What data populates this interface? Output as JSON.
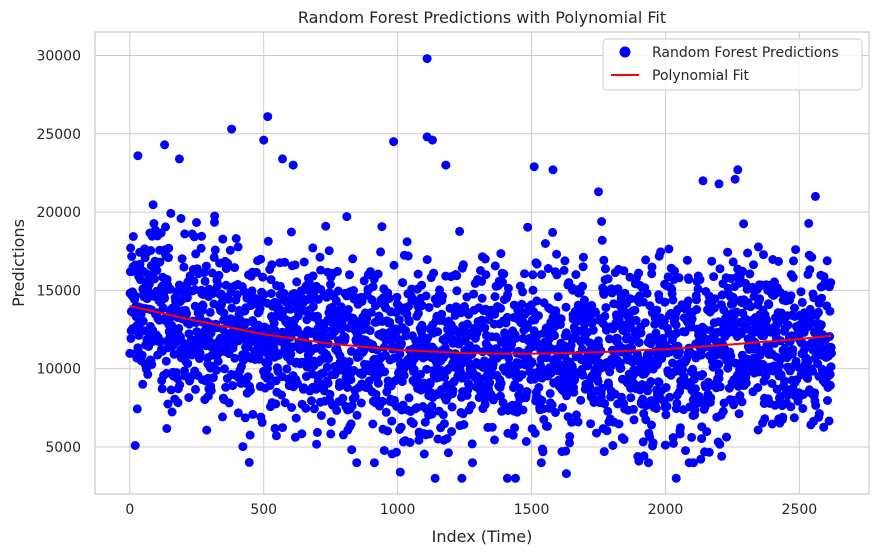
{
  "chart_data": {
    "type": "scatter",
    "title": "Random Forest Predictions with Polynomial Fit",
    "xlabel": "Index (Time)",
    "ylabel": "Predictions",
    "xlim": [
      -130,
      2760
    ],
    "ylim": [
      2000,
      31500
    ],
    "xticks": [
      0,
      500,
      1000,
      1500,
      2000,
      2500
    ],
    "yticks": [
      5000,
      10000,
      15000,
      20000,
      25000,
      30000
    ],
    "grid": true,
    "legend_position": "top-right",
    "colors": {
      "scatter": "#0000ff",
      "fit": "#ff0000",
      "grid": "#cccccc",
      "spine": "#cccccc"
    },
    "series": [
      {
        "name": "Random Forest Predictions",
        "kind": "scatter",
        "x_range": [
          0,
          2620
        ],
        "count": 2620,
        "typical_range": [
          5000,
          19000
        ],
        "notable_points": [
          {
            "x": 1110,
            "y": 29800
          },
          {
            "x": 515,
            "y": 26100
          },
          {
            "x": 380,
            "y": 25300
          },
          {
            "x": 500,
            "y": 24600
          },
          {
            "x": 985,
            "y": 24500
          },
          {
            "x": 1110,
            "y": 24800
          },
          {
            "x": 1130,
            "y": 24600
          },
          {
            "x": 30,
            "y": 23600
          },
          {
            "x": 130,
            "y": 24300
          },
          {
            "x": 185,
            "y": 23400
          },
          {
            "x": 570,
            "y": 23400
          },
          {
            "x": 610,
            "y": 23000
          },
          {
            "x": 1180,
            "y": 23000
          },
          {
            "x": 1510,
            "y": 22900
          },
          {
            "x": 1580,
            "y": 22700
          },
          {
            "x": 2270,
            "y": 22700
          },
          {
            "x": 2260,
            "y": 22100
          },
          {
            "x": 2140,
            "y": 22000
          },
          {
            "x": 2200,
            "y": 21800
          },
          {
            "x": 1750,
            "y": 21300
          },
          {
            "x": 2560,
            "y": 21000
          },
          {
            "x": 20,
            "y": 5100
          },
          {
            "x": 1140,
            "y": 3000
          },
          {
            "x": 1240,
            "y": 3000
          },
          {
            "x": 1410,
            "y": 3000
          },
          {
            "x": 1440,
            "y": 3000
          },
          {
            "x": 2040,
            "y": 3000
          },
          {
            "x": 1630,
            "y": 3300
          },
          {
            "x": 1010,
            "y": 3400
          }
        ]
      },
      {
        "name": "Polynomial Fit",
        "kind": "line",
        "x": [
          0,
          250,
          500,
          750,
          1000,
          1250,
          1500,
          1750,
          2000,
          2250,
          2500,
          2620
        ],
        "values": [
          14000,
          13050,
          12200,
          11600,
          11200,
          11000,
          10950,
          11050,
          11250,
          11550,
          11900,
          12100
        ]
      }
    ]
  }
}
